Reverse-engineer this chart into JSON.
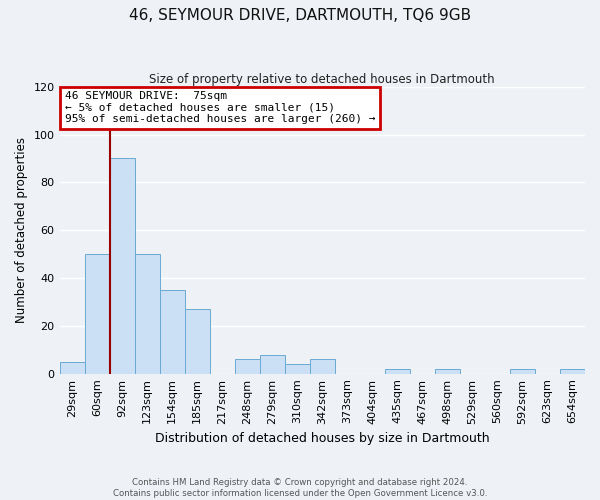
{
  "title": "46, SEYMOUR DRIVE, DARTMOUTH, TQ6 9GB",
  "subtitle": "Size of property relative to detached houses in Dartmouth",
  "xlabel": "Distribution of detached houses by size in Dartmouth",
  "ylabel": "Number of detached properties",
  "bar_labels": [
    "29sqm",
    "60sqm",
    "92sqm",
    "123sqm",
    "154sqm",
    "185sqm",
    "217sqm",
    "248sqm",
    "279sqm",
    "310sqm",
    "342sqm",
    "373sqm",
    "404sqm",
    "435sqm",
    "467sqm",
    "498sqm",
    "529sqm",
    "560sqm",
    "592sqm",
    "623sqm",
    "654sqm"
  ],
  "bar_values": [
    5,
    50,
    90,
    50,
    35,
    27,
    0,
    6,
    8,
    4,
    6,
    0,
    0,
    2,
    0,
    2,
    0,
    0,
    2,
    0,
    2
  ],
  "bar_color": "#cce0f5",
  "bar_edge_color": "#6aaad4",
  "vline_x": 1.5,
  "vline_color": "#990000",
  "ylim": [
    0,
    120
  ],
  "yticks": [
    0,
    20,
    40,
    60,
    80,
    100,
    120
  ],
  "annotation_lines": [
    "46 SEYMOUR DRIVE:  75sqm",
    "← 5% of detached houses are smaller (15)",
    "95% of semi-detached houses are larger (260) →"
  ],
  "annotation_box_color": "#cc0000",
  "footer_line1": "Contains HM Land Registry data © Crown copyright and database right 2024.",
  "footer_line2": "Contains public sector information licensed under the Open Government Licence v3.0.",
  "bg_color": "#eef2f7",
  "grid_color": "#ffffff"
}
